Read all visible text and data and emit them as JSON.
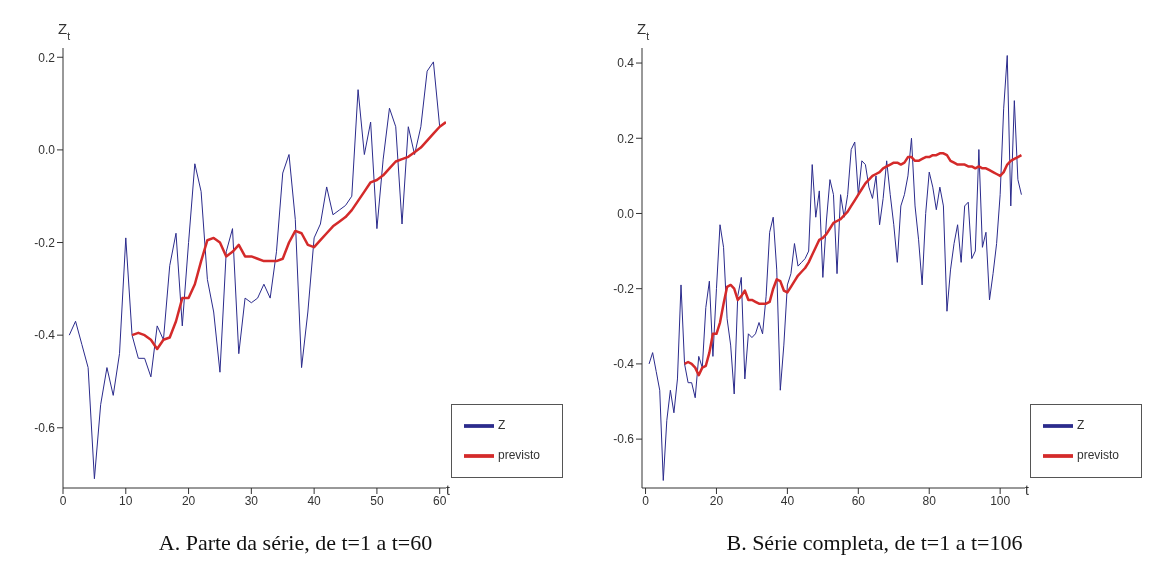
{
  "chart_data": [
    {
      "type": "line",
      "title": "A. Parte da série, de t=1 a t=60",
      "xlabel": "t",
      "ylabel": "Z$_{t}$",
      "xlim": [
        0,
        61
      ],
      "xticks": [
        0,
        10,
        20,
        30,
        40,
        50,
        60
      ],
      "ylim": [
        -0.73,
        0.22
      ],
      "yticks": [
        -0.6,
        -0.4,
        -0.2,
        {
          "value": 0,
          "label": "0.0"
        },
        0.2
      ],
      "grid": false,
      "legend": "bottom right",
      "marker": "none",
      "line_style": "solid",
      "series": [
        {
          "name": "Z",
          "color": "#2b2b8c",
          "x": [
            1,
            2,
            3,
            4,
            5,
            6,
            7,
            8,
            9,
            10,
            11,
            12,
            13,
            14,
            15,
            16,
            17,
            18,
            19,
            20,
            21,
            22,
            23,
            24,
            25,
            26,
            27,
            28,
            29,
            30,
            31,
            32,
            33,
            34,
            35,
            36,
            37,
            38,
            39,
            40,
            41,
            42,
            43,
            44,
            45,
            46,
            47,
            48,
            49,
            50,
            51,
            52,
            53,
            54,
            55,
            56,
            57,
            58,
            59,
            60
          ],
          "values": [
            -0.4,
            -0.37,
            -0.42,
            -0.47,
            -0.71,
            -0.55,
            -0.47,
            -0.53,
            -0.44,
            -0.19,
            -0.4,
            -0.45,
            -0.45,
            -0.49,
            -0.38,
            -0.41,
            -0.25,
            -0.18,
            -0.38,
            -0.2,
            -0.03,
            -0.09,
            -0.28,
            -0.35,
            -0.48,
            -0.22,
            -0.17,
            -0.44,
            -0.32,
            -0.33,
            -0.32,
            -0.29,
            -0.32,
            -0.22,
            -0.05,
            -0.01,
            -0.15,
            -0.47,
            -0.35,
            -0.19,
            -0.16,
            -0.08,
            -0.14,
            -0.13,
            -0.12,
            -0.1,
            0.13,
            -0.01,
            0.06,
            -0.17,
            -0.02,
            0.09,
            0.05,
            -0.16,
            0.05,
            -0.01,
            0.05,
            0.17,
            0.19,
            0.05
          ]
        },
        {
          "name": "previsto",
          "color": "#d42a2a",
          "x": [
            11,
            12,
            13,
            14,
            15,
            16,
            17,
            18,
            19,
            20,
            21,
            22,
            23,
            24,
            25,
            26,
            27,
            28,
            29,
            30,
            31,
            32,
            33,
            34,
            35,
            36,
            37,
            38,
            39,
            40,
            41,
            42,
            43,
            44,
            45,
            46,
            47,
            48,
            49,
            50,
            51,
            52,
            53,
            54,
            55,
            56,
            57,
            58,
            59,
            60,
            61
          ],
          "values": [
            -0.4,
            -0.395,
            -0.4,
            -0.41,
            -0.43,
            -0.41,
            -0.405,
            -0.37,
            -0.32,
            -0.32,
            -0.29,
            -0.24,
            -0.195,
            -0.19,
            -0.2,
            -0.23,
            -0.22,
            -0.205,
            -0.23,
            -0.23,
            -0.235,
            -0.24,
            -0.24,
            -0.24,
            -0.235,
            -0.2,
            -0.175,
            -0.18,
            -0.205,
            -0.21,
            -0.195,
            -0.18,
            -0.165,
            -0.155,
            -0.145,
            -0.13,
            -0.11,
            -0.09,
            -0.07,
            -0.065,
            -0.055,
            -0.04,
            -0.025,
            -0.02,
            -0.015,
            -0.005,
            0.005,
            0.02,
            0.035,
            0.05,
            0.06
          ]
        }
      ]
    },
    {
      "type": "line",
      "title": "B. Série completa, de t=1 a t=106",
      "xlabel": "t",
      "ylabel": "Z$_{t}$",
      "xlim": [
        -1,
        107
      ],
      "xticks": [
        0,
        20,
        40,
        60,
        80,
        100
      ],
      "ylim": [
        -0.73,
        0.44
      ],
      "yticks": [
        -0.6,
        -0.4,
        -0.2,
        {
          "value": 0,
          "label": "0.0"
        },
        0.2,
        0.4
      ],
      "grid": false,
      "legend": "bottom right",
      "marker": "none",
      "line_style": "solid",
      "series": [
        {
          "name": "Z",
          "color": "#2b2b8c",
          "x": [
            1,
            2,
            3,
            4,
            5,
            6,
            7,
            8,
            9,
            10,
            11,
            12,
            13,
            14,
            15,
            16,
            17,
            18,
            19,
            20,
            21,
            22,
            23,
            24,
            25,
            26,
            27,
            28,
            29,
            30,
            31,
            32,
            33,
            34,
            35,
            36,
            37,
            38,
            39,
            40,
            41,
            42,
            43,
            44,
            45,
            46,
            47,
            48,
            49,
            50,
            51,
            52,
            53,
            54,
            55,
            56,
            57,
            58,
            59,
            60,
            61,
            62,
            63,
            64,
            65,
            66,
            67,
            68,
            69,
            70,
            71,
            72,
            73,
            74,
            75,
            76,
            77,
            78,
            79,
            80,
            81,
            82,
            83,
            84,
            85,
            86,
            87,
            88,
            89,
            90,
            91,
            92,
            93,
            94,
            95,
            96,
            97,
            98,
            99,
            100,
            101,
            102,
            103,
            104,
            105,
            106
          ],
          "values": [
            -0.4,
            -0.37,
            -0.42,
            -0.47,
            -0.71,
            -0.55,
            -0.47,
            -0.53,
            -0.44,
            -0.19,
            -0.4,
            -0.45,
            -0.45,
            -0.49,
            -0.38,
            -0.41,
            -0.25,
            -0.18,
            -0.38,
            -0.2,
            -0.03,
            -0.09,
            -0.28,
            -0.35,
            -0.48,
            -0.22,
            -0.17,
            -0.44,
            -0.32,
            -0.33,
            -0.32,
            -0.29,
            -0.32,
            -0.22,
            -0.05,
            -0.01,
            -0.15,
            -0.47,
            -0.35,
            -0.19,
            -0.16,
            -0.08,
            -0.14,
            -0.13,
            -0.12,
            -0.1,
            0.13,
            -0.01,
            0.06,
            -0.17,
            -0.02,
            0.09,
            0.05,
            -0.16,
            0.05,
            -0.01,
            0.05,
            0.17,
            0.19,
            0.05,
            0.14,
            0.13,
            0.07,
            0.04,
            0.1,
            -0.03,
            0.04,
            0.14,
            0.05,
            -0.03,
            -0.13,
            0.02,
            0.05,
            0.1,
            0.2,
            0.02,
            -0.07,
            -0.19,
            0.0,
            0.11,
            0.07,
            0.01,
            0.07,
            0.02,
            -0.26,
            -0.15,
            -0.08,
            -0.03,
            -0.13,
            0.02,
            0.03,
            -0.12,
            -0.1,
            0.17,
            -0.09,
            -0.05,
            -0.23,
            -0.16,
            -0.08,
            0.05,
            0.28,
            0.42,
            0.02,
            0.3,
            0.09,
            0.05
          ]
        },
        {
          "name": "previsto",
          "color": "#d42a2a",
          "x": [
            11,
            12,
            13,
            14,
            15,
            16,
            17,
            18,
            19,
            20,
            21,
            22,
            23,
            24,
            25,
            26,
            27,
            28,
            29,
            30,
            31,
            32,
            33,
            34,
            35,
            36,
            37,
            38,
            39,
            40,
            41,
            42,
            43,
            44,
            45,
            46,
            47,
            48,
            49,
            50,
            51,
            52,
            53,
            54,
            55,
            56,
            57,
            58,
            59,
            60,
            61,
            62,
            63,
            64,
            65,
            66,
            67,
            68,
            69,
            70,
            71,
            72,
            73,
            74,
            75,
            76,
            77,
            78,
            79,
            80,
            81,
            82,
            83,
            84,
            85,
            86,
            87,
            88,
            89,
            90,
            91,
            92,
            93,
            94,
            95,
            96,
            97,
            98,
            99,
            100,
            101,
            102,
            103,
            104,
            105,
            106
          ],
          "values": [
            -0.4,
            -0.395,
            -0.4,
            -0.41,
            -0.43,
            -0.41,
            -0.405,
            -0.37,
            -0.32,
            -0.32,
            -0.29,
            -0.24,
            -0.195,
            -0.19,
            -0.2,
            -0.23,
            -0.22,
            -0.205,
            -0.23,
            -0.23,
            -0.235,
            -0.24,
            -0.24,
            -0.24,
            -0.235,
            -0.2,
            -0.175,
            -0.18,
            -0.205,
            -0.21,
            -0.195,
            -0.18,
            -0.165,
            -0.155,
            -0.145,
            -0.13,
            -0.11,
            -0.09,
            -0.07,
            -0.065,
            -0.055,
            -0.04,
            -0.025,
            -0.02,
            -0.015,
            -0.005,
            0.005,
            0.02,
            0.035,
            0.05,
            0.065,
            0.08,
            0.09,
            0.1,
            0.105,
            0.11,
            0.12,
            0.125,
            0.13,
            0.135,
            0.135,
            0.13,
            0.135,
            0.15,
            0.15,
            0.14,
            0.14,
            0.145,
            0.15,
            0.15,
            0.155,
            0.155,
            0.16,
            0.16,
            0.155,
            0.14,
            0.135,
            0.13,
            0.13,
            0.13,
            0.125,
            0.125,
            0.12,
            0.125,
            0.12,
            0.12,
            0.115,
            0.11,
            0.105,
            0.1,
            0.11,
            0.13,
            0.14,
            0.145,
            0.15,
            0.155
          ]
        }
      ]
    }
  ]
}
